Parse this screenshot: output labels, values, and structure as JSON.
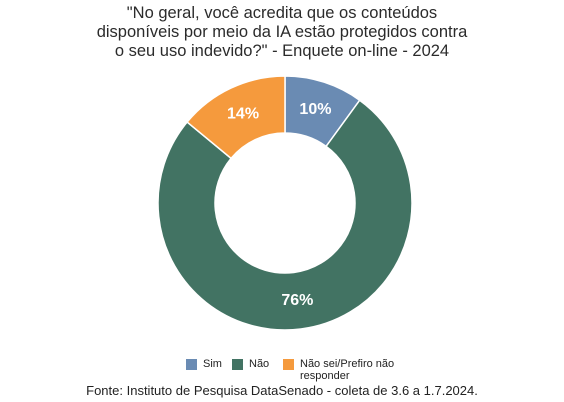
{
  "chart_data": {
    "type": "pie",
    "title_lines": [
      "\"No geral, você acredita que os conteúdos",
      "disponíveis por meio da IA estão protegidos contra",
      "o seu uso indevido?\" - Enquete on-line - 2024"
    ],
    "categories": [
      "Sim",
      "Não",
      "Não sei/Prefiro não responder"
    ],
    "values": [
      10,
      76,
      14
    ],
    "data_labels": [
      "10%",
      "76%",
      "14%"
    ],
    "colors": [
      "#6a8bb3",
      "#427363",
      "#f59a3d"
    ],
    "legend": {
      "position": "bottom",
      "labels": [
        "Sim",
        "Não",
        "Não sei/Prefiro não responder"
      ]
    },
    "source": "Fonte: Instituto de Pesquisa DataSenado - coleta de 3.6 a 1.7.2024."
  }
}
